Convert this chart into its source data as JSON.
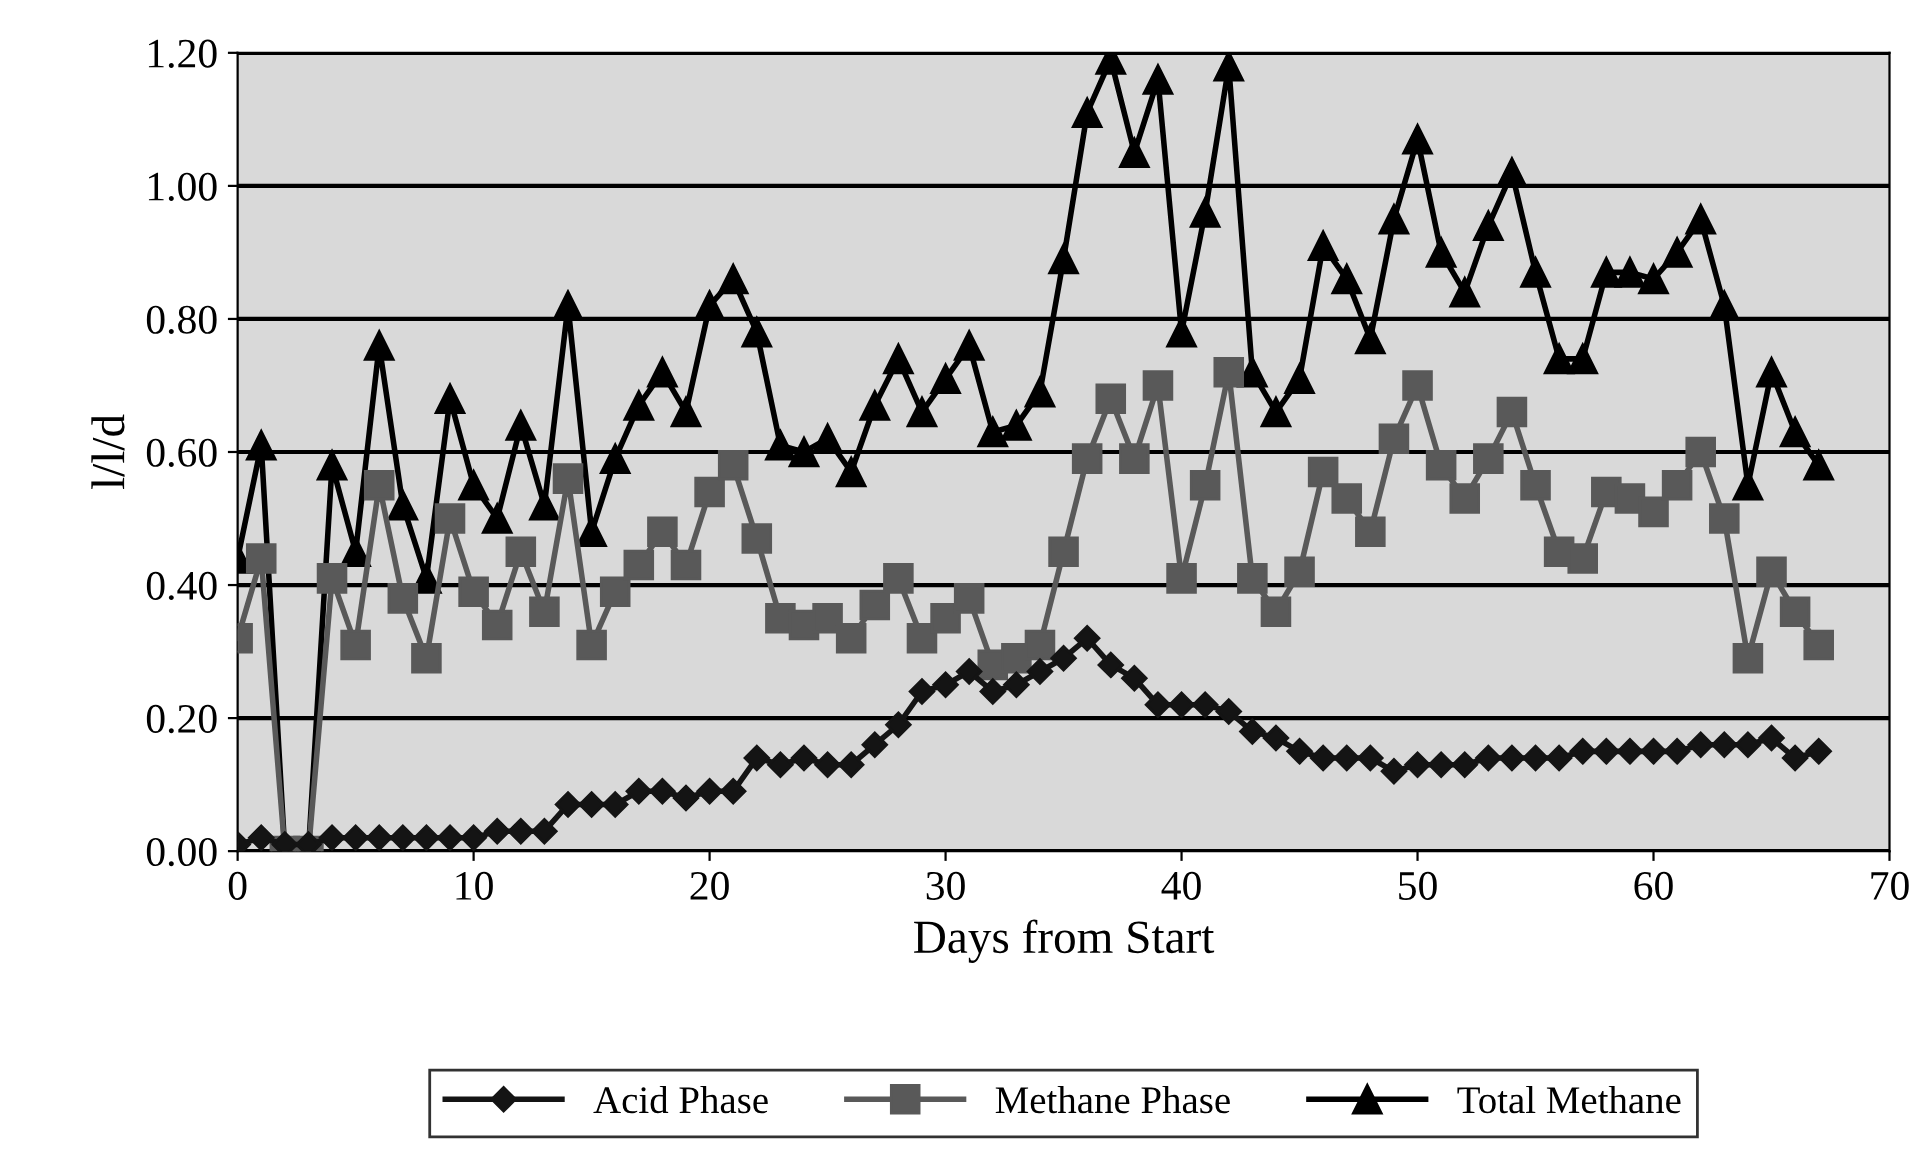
{
  "chart_data": {
    "type": "line",
    "xlabel": "Days from Start",
    "ylabel": "l/l/d",
    "x": [
      0,
      1,
      2,
      3,
      4,
      5,
      6,
      7,
      8,
      9,
      10,
      11,
      12,
      13,
      14,
      15,
      16,
      17,
      18,
      19,
      20,
      21,
      22,
      23,
      24,
      25,
      26,
      27,
      28,
      29,
      30,
      31,
      32,
      33,
      34,
      35,
      36,
      37,
      38,
      39,
      40,
      41,
      42,
      43,
      44,
      45,
      46,
      47,
      48,
      49,
      50,
      51,
      52,
      53,
      54,
      55,
      56,
      57,
      58,
      59,
      60,
      61,
      62,
      63,
      64,
      65,
      66,
      67
    ],
    "series": [
      {
        "name": "Acid Phase",
        "color": "#141414",
        "marker": "diamond",
        "values": [
          0.01,
          0.02,
          0.01,
          0.01,
          0.02,
          0.02,
          0.02,
          0.02,
          0.02,
          0.02,
          0.02,
          0.03,
          0.03,
          0.03,
          0.07,
          0.07,
          0.07,
          0.09,
          0.09,
          0.08,
          0.09,
          0.09,
          0.14,
          0.13,
          0.14,
          0.13,
          0.13,
          0.16,
          0.19,
          0.24,
          0.25,
          0.27,
          0.24,
          0.25,
          0.27,
          0.29,
          0.32,
          0.28,
          0.26,
          0.22,
          0.22,
          0.22,
          0.21,
          0.18,
          0.17,
          0.15,
          0.14,
          0.14,
          0.14,
          0.12,
          0.13,
          0.13,
          0.13,
          0.14,
          0.14,
          0.14,
          0.14,
          0.15,
          0.15,
          0.15,
          0.15,
          0.15,
          0.16,
          0.16,
          0.16,
          0.17,
          0.14,
          0.15
        ]
      },
      {
        "name": "Methane Phase",
        "color": "#595959",
        "marker": "square",
        "values": [
          0.32,
          0.44,
          0.0,
          0.0,
          0.41,
          0.31,
          0.55,
          0.38,
          0.29,
          0.5,
          0.39,
          0.34,
          0.45,
          0.36,
          0.56,
          0.31,
          0.39,
          0.43,
          0.48,
          0.43,
          0.54,
          0.58,
          0.47,
          0.35,
          0.34,
          0.35,
          0.32,
          0.37,
          0.41,
          0.32,
          0.35,
          0.38,
          0.28,
          0.29,
          0.31,
          0.45,
          0.59,
          0.68,
          0.59,
          0.7,
          0.41,
          0.55,
          0.72,
          0.41,
          0.36,
          0.42,
          0.57,
          0.53,
          0.48,
          0.62,
          0.7,
          0.58,
          0.53,
          0.59,
          0.66,
          0.55,
          0.45,
          0.44,
          0.54,
          0.53,
          0.51,
          0.55,
          0.6,
          0.5,
          0.29,
          0.42,
          0.36,
          0.31
        ]
      },
      {
        "name": "Total Methane",
        "color": "#000000",
        "marker": "triangle",
        "values": [
          0.44,
          0.61,
          0.0,
          0.0,
          0.58,
          0.45,
          0.76,
          0.52,
          0.41,
          0.68,
          0.55,
          0.5,
          0.64,
          0.52,
          0.82,
          0.48,
          0.59,
          0.67,
          0.72,
          0.66,
          0.82,
          0.86,
          0.78,
          0.61,
          0.6,
          0.62,
          0.57,
          0.67,
          0.74,
          0.66,
          0.71,
          0.76,
          0.63,
          0.64,
          0.69,
          0.89,
          1.11,
          1.19,
          1.05,
          1.16,
          0.78,
          0.96,
          1.18,
          0.72,
          0.66,
          0.71,
          0.91,
          0.86,
          0.77,
          0.95,
          1.07,
          0.9,
          0.84,
          0.94,
          1.02,
          0.87,
          0.74,
          0.74,
          0.87,
          0.87,
          0.86,
          0.9,
          0.95,
          0.82,
          0.55,
          0.72,
          0.63,
          0.58
        ]
      }
    ],
    "xlim": [
      0,
      70
    ],
    "xticks": [
      0,
      10,
      20,
      30,
      40,
      50,
      60,
      70
    ],
    "ylim": [
      0,
      1.2
    ],
    "yticks": [
      {
        "value": 0,
        "label": "0.00"
      },
      {
        "value": 0.2,
        "label": "0.20"
      },
      {
        "value": 0.4,
        "label": "0.40"
      },
      {
        "value": 0.6,
        "label": "0.60"
      },
      {
        "value": 0.8,
        "label": "0.80"
      },
      {
        "value": 1.0,
        "label": "1.00"
      },
      {
        "value": 1.2,
        "label": "1.20"
      }
    ],
    "grid": "y",
    "legend": "bottom",
    "line_style": "solid"
  }
}
